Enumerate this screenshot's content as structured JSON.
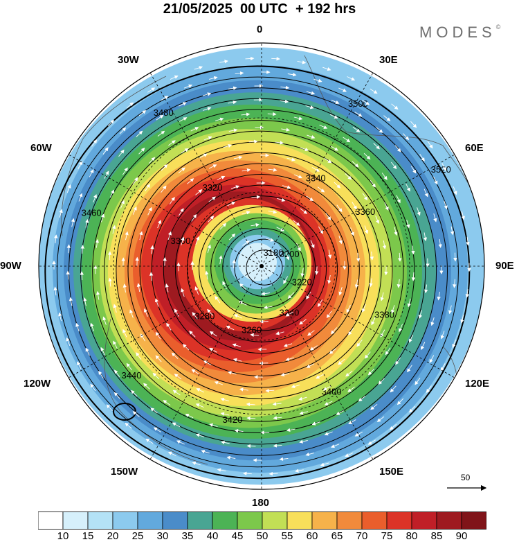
{
  "header": {
    "title": "21/05/2025  00 UTC  + 192 hrs",
    "brand": "MODES",
    "brand_mark": "©"
  },
  "map": {
    "projection": "north-polar-stereographic",
    "longitude_labels": [
      "0",
      "30E",
      "60E",
      "90E",
      "120E",
      "150E",
      "180",
      "150W",
      "120W",
      "90W",
      "60W",
      "30W"
    ],
    "wind_speed_field": "shaded",
    "geopotential_contours": [
      "3180",
      "3200",
      "3220",
      "3240",
      "3260",
      "3280",
      "3300",
      "3320",
      "3340",
      "3360",
      "3380",
      "3400",
      "3420",
      "3440",
      "3460",
      "3480",
      "3500",
      "3520"
    ]
  },
  "vector_legend": {
    "label": "50"
  },
  "colorbar": {
    "ticks": [
      "10",
      "15",
      "20",
      "25",
      "30",
      "35",
      "40",
      "45",
      "50",
      "55",
      "60",
      "65",
      "70",
      "75",
      "80",
      "85",
      "90"
    ],
    "colors": [
      "#ffffff",
      "#d6f0fb",
      "#b4e2f6",
      "#8ccaee",
      "#62a9dd",
      "#4a8cc9",
      "#49a593",
      "#4cb355",
      "#7cc84b",
      "#c2df55",
      "#f8df5a",
      "#f6b24a",
      "#f18a3b",
      "#ea5e2c",
      "#dc3327",
      "#c01f27",
      "#9e1a20",
      "#801419"
    ]
  }
}
